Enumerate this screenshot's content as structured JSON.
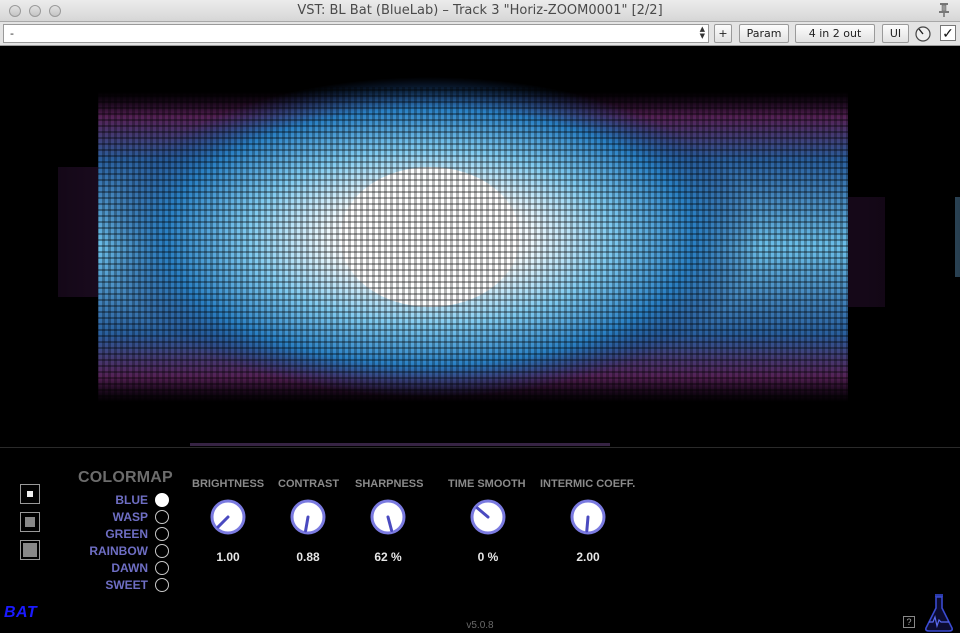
{
  "window": {
    "title": "VST: BL Bat (BlueLab) – Track 3 \"Horiz-ZOOM0001\" [2/2]"
  },
  "toolbar": {
    "preset_value": "-",
    "plus_label": "+",
    "param_label": "Param",
    "io_label": "4 in 2 out",
    "ui_label": "UI",
    "enabled_checked": true
  },
  "colormap": {
    "title": "COLORMAP",
    "options": [
      "BLUE",
      "WASP",
      "GREEN",
      "RAINBOW",
      "DAWN",
      "SWEET"
    ],
    "selected": "BLUE"
  },
  "knobs": [
    {
      "label": "BRIGHTNESS",
      "value": "1.00"
    },
    {
      "label": "CONTRAST",
      "value": "0.88"
    },
    {
      "label": "SHARPNESS",
      "value": "62 %"
    },
    {
      "label": "TIME SMOOTH",
      "value": "0 %"
    },
    {
      "label": "INTERMIC COEFF.",
      "value": "2.00"
    }
  ],
  "footer": {
    "logo": "BAT",
    "version": "v5.0.8",
    "help": "?"
  },
  "colors": {
    "accent": "#6e6ec4",
    "knob_ring": "#7a7ae0",
    "logo": "#1a1aff"
  },
  "icons": [
    "pin-icon",
    "knob-icon",
    "checkbox-icon",
    "flask-icon",
    "help-icon"
  ]
}
